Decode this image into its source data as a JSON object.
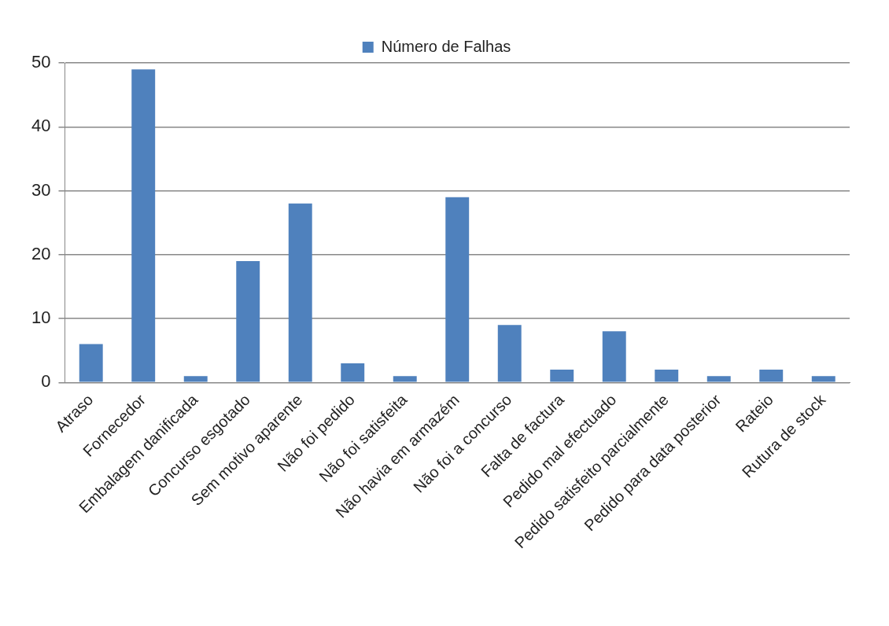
{
  "chart_data": {
    "type": "bar",
    "categories": [
      "Atraso",
      "Fornecedor",
      "Embalagem danificada",
      "Concurso esgotado",
      "Sem motivo aparente",
      "Não foi pedido",
      "Não foi satisfeita",
      "Não havia em armazém",
      "Não foi a concurso",
      "Falta de factura",
      "Pedido mal efectuado",
      "Pedido satisfeito parcialmente",
      "Pedido para data posterior",
      "Rateio",
      "Rutura de stock"
    ],
    "series": [
      {
        "name": "Número de Falhas",
        "color": "#4f81bd",
        "values": [
          6,
          49,
          1,
          19,
          28,
          3,
          1,
          29,
          9,
          2,
          8,
          2,
          1,
          2,
          1
        ]
      }
    ],
    "ylim": [
      0,
      50
    ],
    "yticks": [
      0,
      10,
      20,
      30,
      40,
      50
    ],
    "grid": "y",
    "legend": "top"
  }
}
